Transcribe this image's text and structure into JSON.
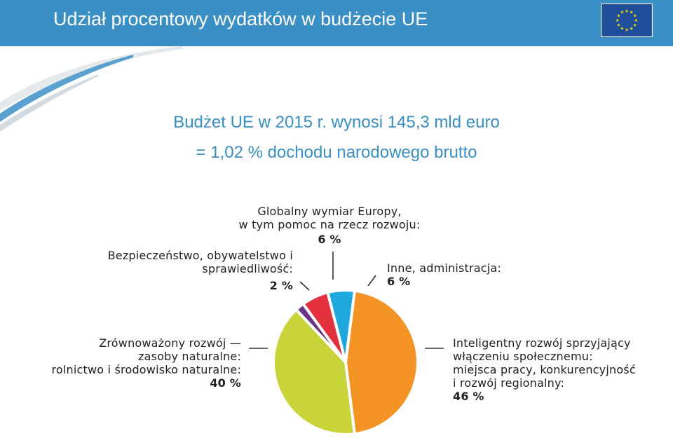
{
  "header": {
    "title": "Udział procentowy wydatków w budżecie UE"
  },
  "headline": {
    "line1": "Budżet UE w 2015 r. wynosi 145,3 mld euro",
    "line2": "= 1,02 % dochodu narodowego brutto"
  },
  "colors": {
    "header_bg": "#3a8fc4",
    "flag_blue": "#1f4e9b",
    "flag_star": "#ffdd00"
  },
  "chart_data": {
    "type": "pie",
    "title": "",
    "slices": [
      {
        "label_lines": [
          "Inteligentny rozwój sprzyjający",
          "włączeniu społecznemu:",
          "miejsca pracy, konkurencyjność",
          "i rozwój regionalny:"
        ],
        "value_text": "46 %",
        "value": 46,
        "color": "#f39424"
      },
      {
        "label_lines": [
          "Zrównoważony rozwój —",
          "zasoby naturalne:",
          "rolnictwo i środowisko naturalne:"
        ],
        "value_text": "40 %",
        "value": 40,
        "color": "#c8d43a"
      },
      {
        "label_lines": [
          "Bezpieczeństwo, obywatelstwo i",
          "sprawiedliwość:"
        ],
        "value_text": "2 %",
        "value": 2,
        "color": "#6a3483"
      },
      {
        "label_lines": [
          "Globalny wymiar Europy,",
          "w tym pomoc na rzecz rozwoju:"
        ],
        "value_text": "6 %",
        "value": 6,
        "color": "#e4313f"
      },
      {
        "label_lines": [
          "Inne, administracja:"
        ],
        "value_text": "6 %",
        "value": 6,
        "color": "#1fa8de"
      }
    ]
  }
}
